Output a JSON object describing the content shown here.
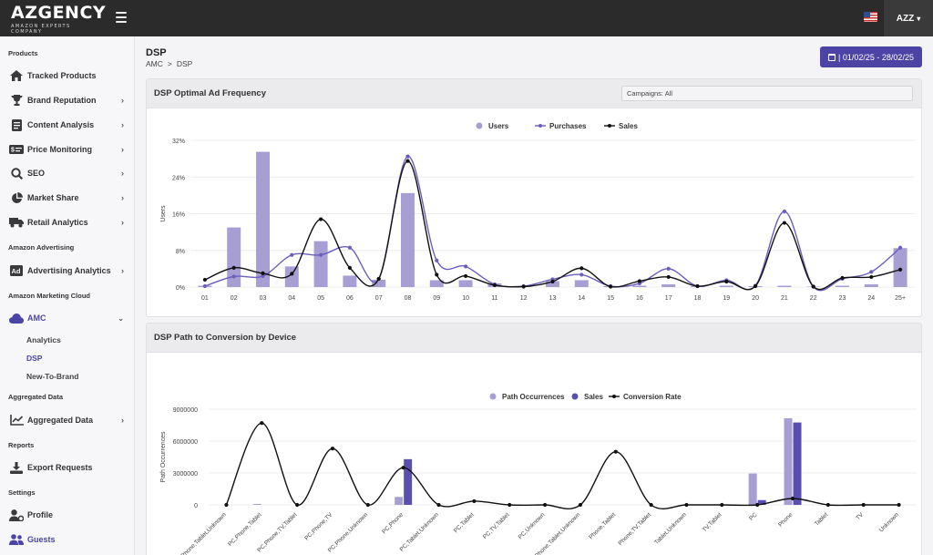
{
  "header": {
    "logo_text": "AZGENCY",
    "logo_tagline": "AMAZON EXPERTS COMPANY",
    "user": "AZZ"
  },
  "sidebar": {
    "sections": [
      {
        "label": "Products",
        "items": [
          {
            "label": "Tracked Products",
            "icon": "home-icon",
            "chevron": false
          },
          {
            "label": "Brand Reputation",
            "icon": "trophy-icon",
            "chevron": true
          },
          {
            "label": "Content Analysis",
            "icon": "document-icon",
            "chevron": true
          },
          {
            "label": "Price Monitoring",
            "icon": "price-tag-icon",
            "chevron": true
          },
          {
            "label": "SEO",
            "icon": "search-icon",
            "chevron": true
          },
          {
            "label": "Market Share",
            "icon": "pie-chart-icon",
            "chevron": true
          },
          {
            "label": "Retail Analytics",
            "icon": "truck-icon",
            "chevron": true
          }
        ]
      },
      {
        "label": "Amazon Advertising",
        "items": [
          {
            "label": "Advertising Analytics",
            "icon": "ad-icon",
            "chevron": true
          }
        ]
      },
      {
        "label": "Amazon Marketing Cloud",
        "items": [
          {
            "label": "AMC",
            "icon": "cloud-icon",
            "chevron": true,
            "expanded": true,
            "subitems": [
              "Analytics",
              "DSP",
              "New-To-Brand"
            ],
            "active_sub": "DSP"
          }
        ]
      },
      {
        "label": "Aggregated Data",
        "items": [
          {
            "label": "Aggregated Data",
            "icon": "line-chart-icon",
            "chevron": true
          }
        ]
      },
      {
        "label": "Reports",
        "items": [
          {
            "label": "Export Requests",
            "icon": "download-icon",
            "chevron": false
          }
        ]
      },
      {
        "label": "Settings",
        "items": [
          {
            "label": "Profile",
            "icon": "user-gear-icon",
            "chevron": false
          },
          {
            "label": "Guests",
            "icon": "users-icon",
            "chevron": false
          }
        ]
      }
    ]
  },
  "page": {
    "title": "DSP",
    "breadcrumb": [
      "AMC",
      ">",
      "DSP"
    ],
    "date_range": "| 01/02/25 - 28/02/25"
  },
  "colors": {
    "accent": "#4b44a5",
    "users_bar": "#a79fd3",
    "purchases_line": "#6a5fbd",
    "sales_line": "#111111",
    "sales_bar": "#5a4fb0"
  },
  "chart_data": [
    {
      "type": "bar",
      "title": "DSP Optimal Ad Frequency",
      "filter": "Campaigns: All",
      "ylabel": "Users",
      "ylim": [
        0,
        32
      ],
      "yticks": [
        "0%",
        "8%",
        "16%",
        "24%",
        "32%"
      ],
      "legend": "top-center",
      "categories": [
        "01",
        "02",
        "03",
        "04",
        "05",
        "06",
        "07",
        "08",
        "09",
        "10",
        "11",
        "12",
        "13",
        "14",
        "15",
        "16",
        "17",
        "18",
        "19",
        "20",
        "21",
        "22",
        "23",
        "24",
        "25+"
      ],
      "series": [
        {
          "name": "Users",
          "type": "bar",
          "values": [
            0.3,
            13,
            29.5,
            4.5,
            10,
            2.5,
            1.6,
            20.5,
            1.5,
            1.5,
            0.8,
            0.2,
            1.3,
            1.5,
            0.2,
            0.3,
            0.6,
            0.2,
            0.3,
            0.2,
            0.3,
            0.1,
            0.3,
            0.6,
            8.5
          ]
        },
        {
          "name": "Purchases",
          "type": "line",
          "values": [
            0.2,
            2.3,
            2.4,
            7,
            7,
            8.6,
            1.8,
            28.5,
            5.8,
            4.5,
            0.6,
            0.2,
            1.7,
            2.7,
            0.2,
            0.8,
            4,
            0.2,
            1.5,
            0.3,
            16.5,
            0.1,
            1.8,
            3.3,
            8.6
          ]
        },
        {
          "name": "Sales",
          "type": "line",
          "values": [
            1.6,
            4.2,
            3,
            2.9,
            14.8,
            4.2,
            1.8,
            27.5,
            2.7,
            2.4,
            0.4,
            0.1,
            1.2,
            4.1,
            0.1,
            1.3,
            2.2,
            0.2,
            1.2,
            0.2,
            14,
            0.1,
            2,
            2.2,
            3.8
          ]
        }
      ]
    },
    {
      "type": "bar",
      "title": "DSP Path to Conversion by Device",
      "ylabel": "Path Occurrences",
      "ylim": [
        0,
        9000000
      ],
      "yticks": [
        "0",
        "3000000",
        "6000000",
        "9000000"
      ],
      "legend": "top-center",
      "categories": [
        "PC,Phone,Tablet,Unknown",
        "PC,Phone,Tablet",
        "PC,Phone,TV,Tablet",
        "PC,Phone,TV",
        "PC,Phone,Unknown",
        "PC,Phone",
        "PC,Tablet,Unknown",
        "PC,Tablet",
        "PC,TV,Tablet",
        "PC,Unknown",
        "Phone,Tablet,Unknown",
        "Phone,Tablet",
        "Phone,TV,Tablet",
        "Tablet,Unknown",
        "TV,Tablet",
        "PC",
        "Phone",
        "Tablet",
        "TV",
        "Unknown"
      ],
      "series": [
        {
          "name": "Path Occurrences",
          "type": "bar",
          "values": [
            0,
            80000,
            0,
            0,
            0,
            750000,
            0,
            0,
            0,
            0,
            0,
            0,
            0,
            0,
            0,
            2950000,
            8150000,
            0,
            0,
            0
          ]
        },
        {
          "name": "Sales",
          "type": "bar",
          "values": [
            0,
            0,
            0,
            0,
            0,
            4300000,
            0,
            0,
            0,
            0,
            0,
            0,
            0,
            0,
            0,
            450000,
            7750000,
            0,
            0,
            0
          ]
        },
        {
          "name": "Conversion Rate",
          "type": "line",
          "values": [
            0,
            7700000,
            0,
            5300000,
            0,
            3500000,
            0,
            350000,
            0,
            0,
            0,
            5000000,
            0,
            0,
            0,
            0,
            600000,
            0,
            0,
            0
          ]
        }
      ]
    }
  ]
}
